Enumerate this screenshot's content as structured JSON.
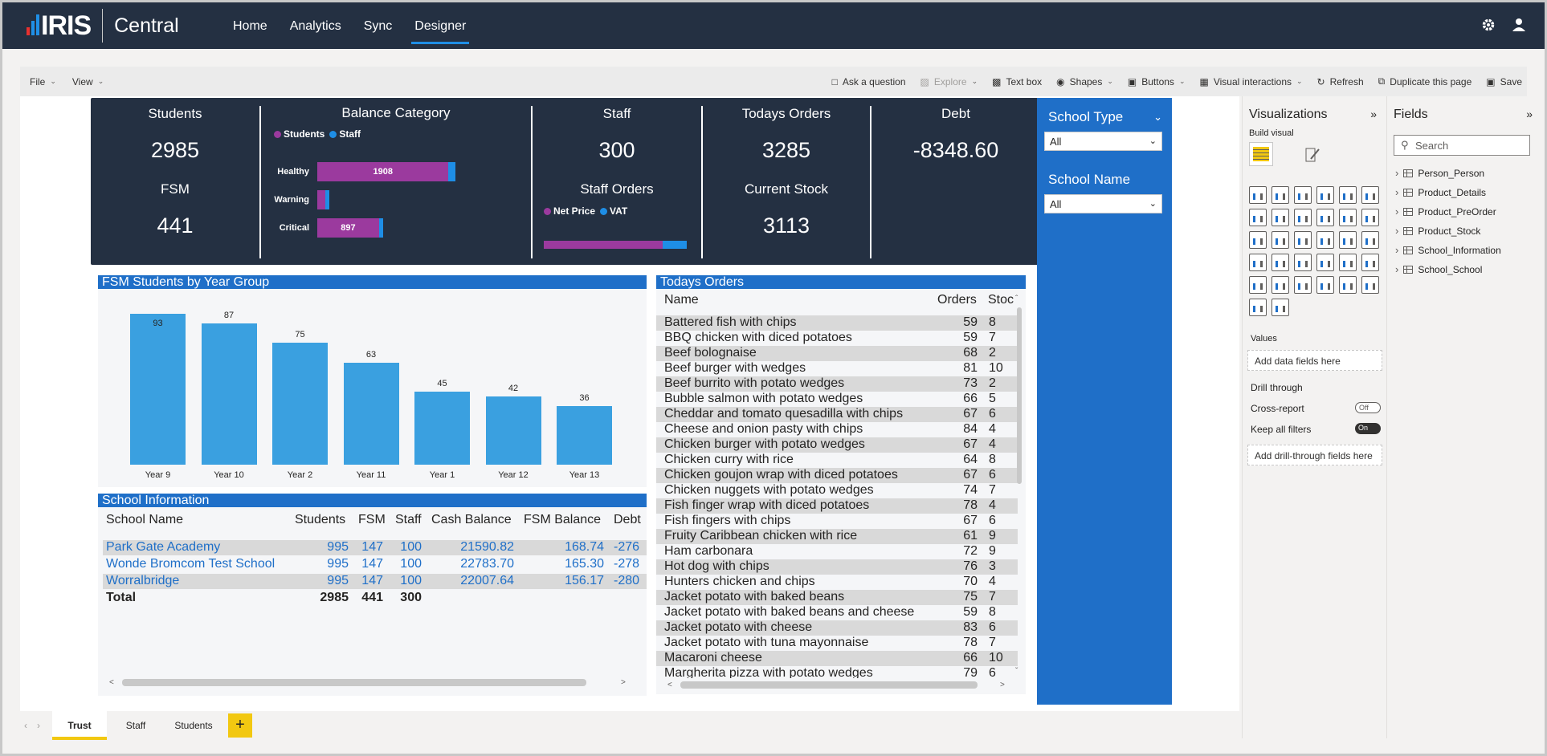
{
  "app": {
    "logo_text": "IRIS",
    "product": "Central",
    "nav_tabs": [
      "Home",
      "Analytics",
      "Sync",
      "Designer"
    ],
    "active_tab": "Designer",
    "logo_bar_colors": [
      "#e8312f",
      "#1f8fe6",
      "#1f8fe6"
    ]
  },
  "toolbar": {
    "file": "File",
    "view": "View",
    "ask": "Ask a question",
    "explore": "Explore",
    "textbox": "Text box",
    "shapes": "Shapes",
    "buttons": "Buttons",
    "visual_interactions": "Visual interactions",
    "refresh": "Refresh",
    "duplicate": "Duplicate this page",
    "save": "Save"
  },
  "kpi": {
    "students_label": "Students",
    "students_value": "2985",
    "fsm_label": "FSM",
    "fsm_value": "441",
    "balance_title": "Balance Category",
    "balance_legend": [
      "Students",
      "Staff"
    ],
    "balance_rows": [
      {
        "label": "Healthy",
        "students": 1908,
        "staff": 100,
        "shown": "1908"
      },
      {
        "label": "Warning",
        "students": 99,
        "staff": 20,
        "shown": ""
      },
      {
        "label": "Critical",
        "students": 897,
        "staff": 50,
        "shown": "897"
      }
    ],
    "staff_label": "Staff",
    "staff_value": "300",
    "staff_orders_label": "Staff Orders",
    "staff_orders_legend": [
      "Net Price",
      "VAT"
    ],
    "staff_orders_split": 0.83,
    "orders_label": "Todays Orders",
    "orders_value": "3285",
    "stock_label": "Current Stock",
    "stock_value": "3113",
    "debt_label": "Debt",
    "debt_value": "-8348.60",
    "color_purple": "#9b3a9e",
    "color_blue": "#1e8ee6"
  },
  "filters": {
    "school_type_label": "School Type",
    "school_type_value": "All",
    "school_name_label": "School Name",
    "school_name_value": "All"
  },
  "fsm_chart": {
    "title": "FSM Students by Year Group",
    "chart_data": {
      "type": "bar",
      "categories": [
        "Year 9",
        "Year 10",
        "Year 2",
        "Year 11",
        "Year 1",
        "Year 12",
        "Year 13"
      ],
      "values": [
        93,
        87,
        75,
        63,
        45,
        42,
        36
      ],
      "ylim": [
        0,
        93
      ]
    }
  },
  "school_info": {
    "title": "School Information",
    "headers": [
      "School Name",
      "Students",
      "FSM",
      "Staff",
      "Cash Balance",
      "FSM Balance",
      "Debt"
    ],
    "rows": [
      [
        "Park Gate Academy",
        "995",
        "147",
        "100",
        "21590.82",
        "168.74",
        "-276"
      ],
      [
        "Wonde Bromcom Test School",
        "995",
        "147",
        "100",
        "22783.70",
        "165.30",
        "-278"
      ],
      [
        "Worralbridge",
        "995",
        "147",
        "100",
        "22007.64",
        "156.17",
        "-280"
      ]
    ],
    "total": [
      "Total",
      "2985",
      "441",
      "300"
    ]
  },
  "orders": {
    "title": "Todays Orders",
    "headers": [
      "Name",
      "Orders",
      "Stoc"
    ],
    "rows": [
      [
        "Battered fish with chips",
        "59",
        "8"
      ],
      [
        "BBQ chicken with diced potatoes",
        "59",
        "7"
      ],
      [
        "Beef bolognaise",
        "68",
        "2"
      ],
      [
        "Beef burger with wedges",
        "81",
        "10"
      ],
      [
        "Beef burrito with potato wedges",
        "73",
        "2"
      ],
      [
        "Bubble salmon with potato wedges",
        "66",
        "5"
      ],
      [
        "Cheddar and tomato quesadilla with chips",
        "67",
        "6"
      ],
      [
        "Cheese and onion pasty with chips",
        "84",
        "4"
      ],
      [
        "Chicken burger with potato wedges",
        "67",
        "4"
      ],
      [
        "Chicken curry with rice",
        "64",
        "8"
      ],
      [
        "Chicken goujon wrap with diced potatoes",
        "67",
        "6"
      ],
      [
        "Chicken nuggets with potato wedges",
        "74",
        "7"
      ],
      [
        "Fish finger wrap with diced potatoes",
        "78",
        "4"
      ],
      [
        "Fish fingers with chips",
        "67",
        "6"
      ],
      [
        "Fruity Caribbean chicken with rice",
        "61",
        "9"
      ],
      [
        "Ham carbonara",
        "72",
        "9"
      ],
      [
        "Hot dog with chips",
        "76",
        "3"
      ],
      [
        "Hunters chicken and chips",
        "70",
        "4"
      ],
      [
        "Jacket potato with baked beans",
        "75",
        "7"
      ],
      [
        "Jacket potato with baked beans and cheese",
        "59",
        "8"
      ],
      [
        "Jacket potato with cheese",
        "83",
        "6"
      ],
      [
        "Jacket potato with tuna mayonnaise",
        "78",
        "7"
      ],
      [
        "Macaroni cheese",
        "66",
        "10"
      ],
      [
        "Margherita pizza with potato wedges",
        "79",
        "6"
      ]
    ]
  },
  "visualizations": {
    "title": "Visualizations",
    "build_visual": "Build visual",
    "values_label": "Values",
    "values_drop": "Add data fields here",
    "drill_through": "Drill through",
    "cross_report": "Cross-report",
    "cross_report_state": "Off",
    "keep_filters": "Keep all filters",
    "keep_filters_state": "On",
    "drill_drop": "Add drill-through fields here"
  },
  "fields": {
    "title": "Fields",
    "search_placeholder": "Search",
    "tables": [
      "Person_Person",
      "Product_Details",
      "Product_PreOrder",
      "Product_Stock",
      "School_Information",
      "School_School"
    ]
  },
  "pages": {
    "tabs": [
      "Trust",
      "Staff",
      "Students"
    ],
    "active": "Trust",
    "add": "+"
  }
}
